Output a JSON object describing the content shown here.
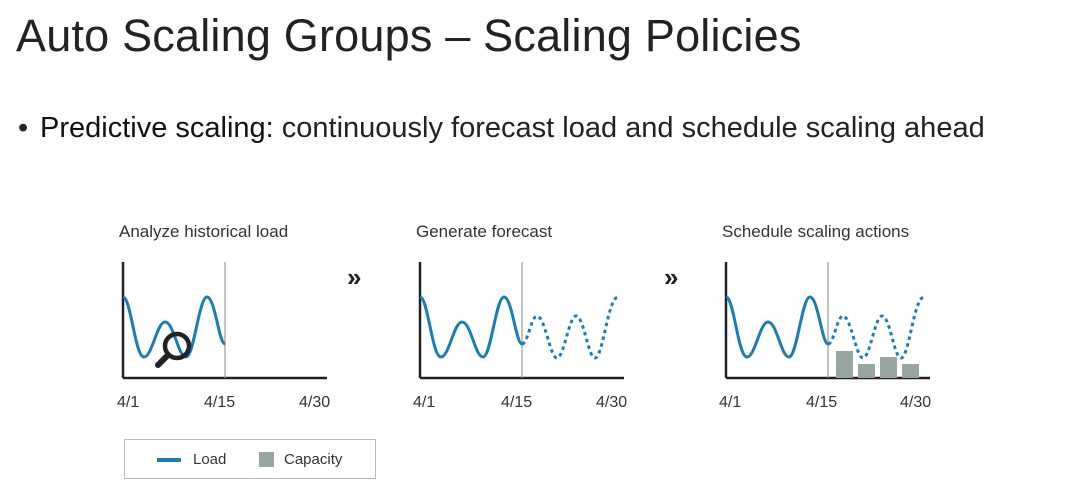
{
  "slide": {
    "title": "Auto Scaling Groups – Scaling Policies",
    "bullet": {
      "term": "Predictive scaling:",
      "text": " continuously forecast load and schedule scaling ahead"
    }
  },
  "panels": [
    {
      "title": "Analyze historical load",
      "ticks": [
        "4/1",
        "4/15",
        "4/30"
      ]
    },
    {
      "title": "Generate forecast",
      "ticks": [
        "4/1",
        "4/15",
        "4/30"
      ]
    },
    {
      "title": "Schedule scaling actions",
      "ticks": [
        "4/1",
        "4/15",
        "4/30"
      ]
    }
  ],
  "arrows": [
    "»",
    "»"
  ],
  "legend": {
    "load": "Load",
    "capacity": "Capacity"
  },
  "colors": {
    "load": "#1b7db7",
    "capacity": "#97a6a2",
    "axis": "#222222",
    "divider": "#9a9a9a"
  },
  "icons": {
    "magnifier": "magnifier-icon",
    "arrow": "double-chevron-icon"
  }
}
